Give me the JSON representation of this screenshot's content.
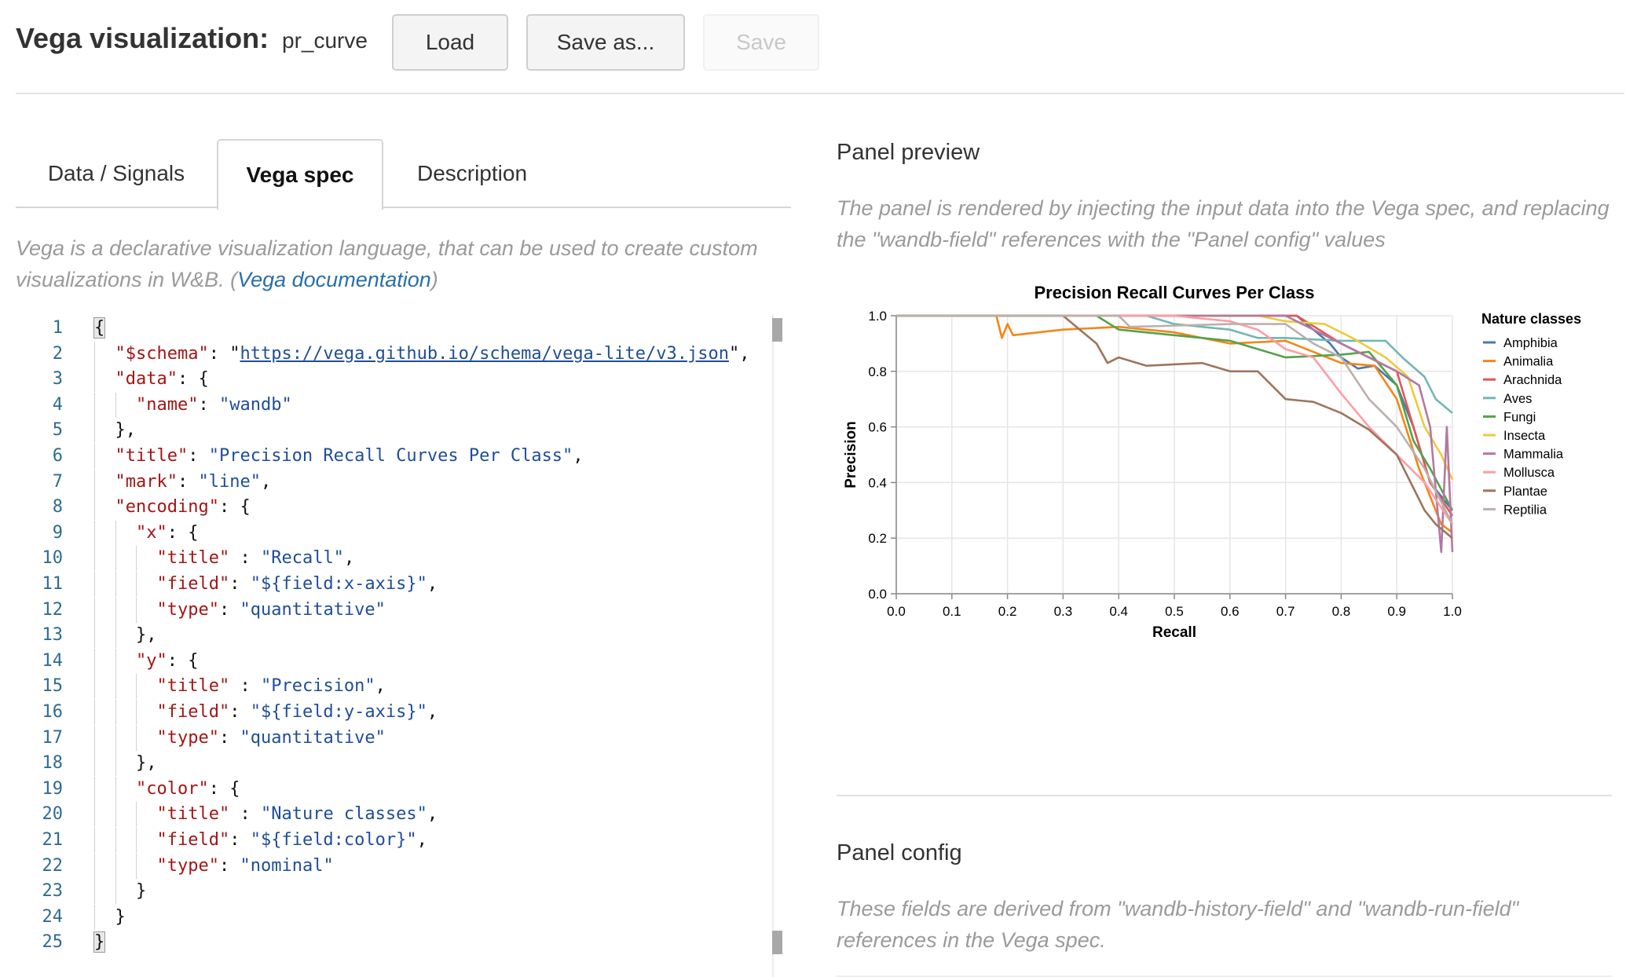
{
  "header": {
    "title": "Vega visualization:",
    "spec_name": "pr_curve",
    "load_label": "Load",
    "save_as_label": "Save as...",
    "save_label": "Save"
  },
  "tabs": [
    {
      "label": "Data / Signals",
      "active": false
    },
    {
      "label": "Vega spec",
      "active": true
    },
    {
      "label": "Description",
      "active": false
    }
  ],
  "vega_description": {
    "text": "Vega is a declarative visualization language, that can be used to create custom visualizations in W&B. (",
    "link": "Vega documentation",
    "after": ")"
  },
  "code_lines": [
    {
      "n": "1",
      "indent": 0,
      "tokens": [
        [
          "p",
          "{"
        ]
      ]
    },
    {
      "n": "2",
      "indent": 1,
      "tokens": [
        [
          "k",
          "\"$schema\""
        ],
        [
          "p",
          ": \""
        ],
        [
          "u",
          "https://vega.github.io/schema/vega-lite/v3.json"
        ],
        [
          "p",
          "\","
        ]
      ]
    },
    {
      "n": "3",
      "indent": 1,
      "tokens": [
        [
          "k",
          "\"data\""
        ],
        [
          "p",
          ": {"
        ]
      ]
    },
    {
      "n": "4",
      "indent": 2,
      "tokens": [
        [
          "k",
          "\"name\""
        ],
        [
          "p",
          ": "
        ],
        [
          "s",
          "\"wandb\""
        ]
      ]
    },
    {
      "n": "5",
      "indent": 1,
      "tokens": [
        [
          "p",
          "},"
        ]
      ]
    },
    {
      "n": "6",
      "indent": 1,
      "tokens": [
        [
          "k",
          "\"title\""
        ],
        [
          "p",
          ": "
        ],
        [
          "s",
          "\"Precision Recall Curves Per Class\""
        ],
        [
          "p",
          ","
        ]
      ]
    },
    {
      "n": "7",
      "indent": 1,
      "tokens": [
        [
          "k",
          "\"mark\""
        ],
        [
          "p",
          ": "
        ],
        [
          "s",
          "\"line\""
        ],
        [
          "p",
          ","
        ]
      ]
    },
    {
      "n": "8",
      "indent": 1,
      "tokens": [
        [
          "k",
          "\"encoding\""
        ],
        [
          "p",
          ": {"
        ]
      ]
    },
    {
      "n": "9",
      "indent": 2,
      "tokens": [
        [
          "k",
          "\"x\""
        ],
        [
          "p",
          ": {"
        ]
      ]
    },
    {
      "n": "10",
      "indent": 3,
      "tokens": [
        [
          "k",
          "\"title\""
        ],
        [
          "p",
          " : "
        ],
        [
          "s",
          "\"Recall\""
        ],
        [
          "p",
          ","
        ]
      ]
    },
    {
      "n": "11",
      "indent": 3,
      "tokens": [
        [
          "k",
          "\"field\""
        ],
        [
          "p",
          ": "
        ],
        [
          "s",
          "\"${field:x-axis}\""
        ],
        [
          "p",
          ","
        ]
      ]
    },
    {
      "n": "12",
      "indent": 3,
      "tokens": [
        [
          "k",
          "\"type\""
        ],
        [
          "p",
          ": "
        ],
        [
          "s",
          "\"quantitative\""
        ]
      ]
    },
    {
      "n": "13",
      "indent": 2,
      "tokens": [
        [
          "p",
          "},"
        ]
      ]
    },
    {
      "n": "14",
      "indent": 2,
      "tokens": [
        [
          "k",
          "\"y\""
        ],
        [
          "p",
          ": {"
        ]
      ]
    },
    {
      "n": "15",
      "indent": 3,
      "tokens": [
        [
          "k",
          "\"title\""
        ],
        [
          "p",
          " : "
        ],
        [
          "s",
          "\"Precision\""
        ],
        [
          "p",
          ","
        ]
      ]
    },
    {
      "n": "16",
      "indent": 3,
      "tokens": [
        [
          "k",
          "\"field\""
        ],
        [
          "p",
          ": "
        ],
        [
          "s",
          "\"${field:y-axis}\""
        ],
        [
          "p",
          ","
        ]
      ]
    },
    {
      "n": "17",
      "indent": 3,
      "tokens": [
        [
          "k",
          "\"type\""
        ],
        [
          "p",
          ": "
        ],
        [
          "s",
          "\"quantitative\""
        ]
      ]
    },
    {
      "n": "18",
      "indent": 2,
      "tokens": [
        [
          "p",
          "},"
        ]
      ]
    },
    {
      "n": "19",
      "indent": 2,
      "tokens": [
        [
          "k",
          "\"color\""
        ],
        [
          "p",
          ": {"
        ]
      ]
    },
    {
      "n": "20",
      "indent": 3,
      "tokens": [
        [
          "k",
          "\"title\""
        ],
        [
          "p",
          " : "
        ],
        [
          "s",
          "\"Nature classes\""
        ],
        [
          "p",
          ","
        ]
      ]
    },
    {
      "n": "21",
      "indent": 3,
      "tokens": [
        [
          "k",
          "\"field\""
        ],
        [
          "p",
          ": "
        ],
        [
          "s",
          "\"${field:color}\""
        ],
        [
          "p",
          ","
        ]
      ]
    },
    {
      "n": "22",
      "indent": 3,
      "tokens": [
        [
          "k",
          "\"type\""
        ],
        [
          "p",
          ": "
        ],
        [
          "s",
          "\"nominal\""
        ]
      ]
    },
    {
      "n": "23",
      "indent": 2,
      "tokens": [
        [
          "p",
          "}"
        ]
      ]
    },
    {
      "n": "24",
      "indent": 1,
      "tokens": [
        [
          "p",
          "}"
        ]
      ]
    },
    {
      "n": "25",
      "indent": 0,
      "tokens": [
        [
          "p",
          "}"
        ]
      ]
    }
  ],
  "preview": {
    "title": "Panel preview",
    "description": "The panel is rendered by injecting the input data into the Vega spec, and replacing the \"wandb-field\" references with the \"Panel config\" values"
  },
  "config": {
    "title": "Panel config",
    "description": "These fields are derived from \"wandb-history-field\" and \"wandb-run-field\" references in the Vega spec."
  },
  "chart_data": {
    "type": "line",
    "title": "Precision Recall Curves Per Class",
    "xlabel": "Recall",
    "ylabel": "Precision",
    "xlim": [
      0,
      1
    ],
    "ylim": [
      0,
      1
    ],
    "xticks": [
      "0.0",
      "0.1",
      "0.2",
      "0.3",
      "0.4",
      "0.5",
      "0.6",
      "0.7",
      "0.8",
      "0.9",
      "1.0"
    ],
    "yticks": [
      "0.0",
      "0.2",
      "0.4",
      "0.6",
      "0.8",
      "1.0"
    ],
    "grid": true,
    "legend_title": "Nature classes",
    "legend_position": "right",
    "series": [
      {
        "name": "Amphibia",
        "color": "#4c78a8",
        "points": [
          [
            0,
            1
          ],
          [
            0.7,
            1
          ],
          [
            0.72,
            1
          ],
          [
            0.75,
            0.95
          ],
          [
            0.78,
            0.9
          ],
          [
            0.8,
            0.85
          ],
          [
            0.83,
            0.81
          ],
          [
            0.86,
            0.82
          ],
          [
            0.9,
            0.75
          ],
          [
            0.93,
            0.6
          ],
          [
            0.96,
            0.4
          ],
          [
            1,
            0.3
          ]
        ]
      },
      {
        "name": "Animalia",
        "color": "#f58518",
        "points": [
          [
            0,
            1
          ],
          [
            0.18,
            1
          ],
          [
            0.19,
            0.92
          ],
          [
            0.2,
            0.97
          ],
          [
            0.21,
            0.93
          ],
          [
            0.3,
            0.95
          ],
          [
            0.4,
            0.96
          ],
          [
            0.5,
            0.94
          ],
          [
            0.6,
            0.9
          ],
          [
            0.7,
            0.91
          ],
          [
            0.8,
            0.83
          ],
          [
            0.86,
            0.82
          ],
          [
            0.9,
            0.7
          ],
          [
            0.94,
            0.45
          ],
          [
            0.98,
            0.25
          ],
          [
            1,
            0.22
          ]
        ]
      },
      {
        "name": "Arachnida",
        "color": "#e45756",
        "points": [
          [
            0,
            1
          ],
          [
            0.72,
            1
          ],
          [
            0.76,
            0.95
          ],
          [
            0.8,
            0.9
          ],
          [
            0.85,
            0.85
          ],
          [
            0.9,
            0.8
          ],
          [
            0.93,
            0.6
          ],
          [
            0.96,
            0.4
          ],
          [
            1,
            0.28
          ]
        ]
      },
      {
        "name": "Aves",
        "color": "#72b7b2",
        "points": [
          [
            0,
            1
          ],
          [
            0.45,
            1
          ],
          [
            0.5,
            0.97
          ],
          [
            0.6,
            0.95
          ],
          [
            0.65,
            0.92
          ],
          [
            0.7,
            0.92
          ],
          [
            0.8,
            0.91
          ],
          [
            0.88,
            0.91
          ],
          [
            0.91,
            0.85
          ],
          [
            0.95,
            0.78
          ],
          [
            0.97,
            0.7
          ],
          [
            1,
            0.65
          ]
        ]
      },
      {
        "name": "Fungi",
        "color": "#54a24b",
        "points": [
          [
            0,
            1
          ],
          [
            0.36,
            1
          ],
          [
            0.4,
            0.95
          ],
          [
            0.5,
            0.93
          ],
          [
            0.6,
            0.91
          ],
          [
            0.65,
            0.88
          ],
          [
            0.7,
            0.85
          ],
          [
            0.8,
            0.86
          ],
          [
            0.85,
            0.87
          ],
          [
            0.9,
            0.75
          ],
          [
            0.93,
            0.55
          ],
          [
            0.96,
            0.45
          ],
          [
            1,
            0.3
          ]
        ]
      },
      {
        "name": "Insecta",
        "color": "#eeca3b",
        "points": [
          [
            0,
            1
          ],
          [
            0.58,
            1
          ],
          [
            0.65,
            1
          ],
          [
            0.7,
            0.98
          ],
          [
            0.77,
            0.97
          ],
          [
            0.82,
            0.92
          ],
          [
            0.88,
            0.85
          ],
          [
            0.92,
            0.78
          ],
          [
            0.95,
            0.6
          ],
          [
            0.98,
            0.5
          ],
          [
            1,
            0.41
          ]
        ]
      },
      {
        "name": "Mammalia",
        "color": "#b279a2",
        "points": [
          [
            0,
            1
          ],
          [
            0.6,
            1
          ],
          [
            0.7,
            1
          ],
          [
            0.75,
            0.95
          ],
          [
            0.8,
            0.9
          ],
          [
            0.9,
            0.8
          ],
          [
            0.94,
            0.75
          ],
          [
            0.96,
            0.6
          ],
          [
            0.98,
            0.15
          ],
          [
            0.99,
            0.6
          ],
          [
            1,
            0.15
          ]
        ]
      },
      {
        "name": "Mollusca",
        "color": "#ff9da6",
        "points": [
          [
            0,
            1
          ],
          [
            0.4,
            1
          ],
          [
            0.5,
            1
          ],
          [
            0.6,
            0.98
          ],
          [
            0.65,
            0.95
          ],
          [
            0.7,
            0.88
          ],
          [
            0.75,
            0.85
          ],
          [
            0.8,
            0.72
          ],
          [
            0.85,
            0.6
          ],
          [
            0.9,
            0.5
          ],
          [
            0.95,
            0.4
          ],
          [
            1,
            0.25
          ]
        ]
      },
      {
        "name": "Plantae",
        "color": "#9d755d",
        "points": [
          [
            0,
            1
          ],
          [
            0.3,
            1
          ],
          [
            0.33,
            0.95
          ],
          [
            0.36,
            0.9
          ],
          [
            0.38,
            0.83
          ],
          [
            0.4,
            0.85
          ],
          [
            0.45,
            0.82
          ],
          [
            0.55,
            0.83
          ],
          [
            0.6,
            0.8
          ],
          [
            0.65,
            0.8
          ],
          [
            0.7,
            0.7
          ],
          [
            0.75,
            0.69
          ],
          [
            0.8,
            0.65
          ],
          [
            0.85,
            0.59
          ],
          [
            0.9,
            0.5
          ],
          [
            0.95,
            0.3
          ],
          [
            0.97,
            0.25
          ],
          [
            1,
            0.2
          ]
        ]
      },
      {
        "name": "Reptilia",
        "color": "#bab0ac",
        "points": [
          [
            0,
            1
          ],
          [
            0.4,
            1
          ],
          [
            0.42,
            0.96
          ],
          [
            0.6,
            0.97
          ],
          [
            0.7,
            0.97
          ],
          [
            0.75,
            0.9
          ],
          [
            0.8,
            0.85
          ],
          [
            0.85,
            0.7
          ],
          [
            0.9,
            0.6
          ],
          [
            0.95,
            0.45
          ],
          [
            1,
            0.25
          ]
        ]
      }
    ]
  }
}
